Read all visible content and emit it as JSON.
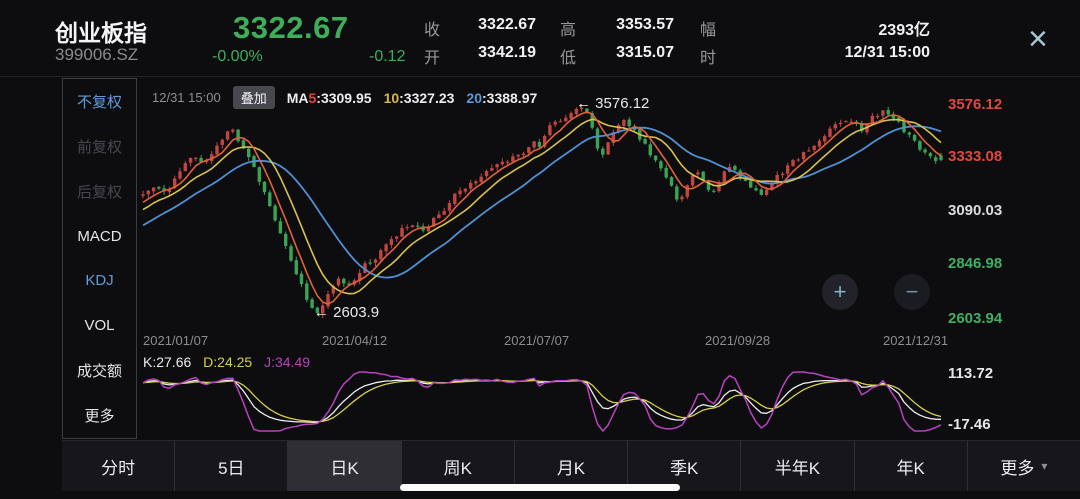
{
  "header": {
    "name": "创业板指",
    "code": "399006.SZ",
    "price": "3322.67",
    "change_pct": "-0.00%",
    "change_val": "-0.12",
    "stats": {
      "close_label": "收",
      "close": "3322.67",
      "open_label": "开",
      "open": "3342.19",
      "high_label": "高",
      "high": "3353.57",
      "low_label": "低",
      "low": "3315.07",
      "amp_label": "幅",
      "amp": "2393亿",
      "time_label": "时",
      "time": "12/31 15:00"
    },
    "close_icon": "×"
  },
  "sidebar": {
    "items": [
      {
        "label": "不复权",
        "state": "selected"
      },
      {
        "label": "前复权",
        "state": "disabled"
      },
      {
        "label": "后复权",
        "state": "disabled"
      },
      {
        "label": "MACD",
        "state": "normal"
      },
      {
        "label": "KDJ",
        "state": "selected"
      },
      {
        "label": "VOL",
        "state": "normal"
      },
      {
        "label": "成交额",
        "state": "normal"
      },
      {
        "label": "更多",
        "state": "normal"
      }
    ]
  },
  "legend": {
    "time": "12/31 15:00",
    "overlay_button": "叠加",
    "ma_prefix": "MA",
    "ma5_period": "5",
    "ma5_value": ":3309.95",
    "ma10_period": "10",
    "ma10_value": ":3327.23",
    "ma20_period": "20",
    "ma20_value": ":3388.97"
  },
  "kdj_legend": {
    "k": "K:27.66",
    "d": "D:24.25",
    "j": "J:34.49",
    "max": "113.72",
    "min": "-17.46"
  },
  "zoom_controls": {
    "plus": "+",
    "minus": "−"
  },
  "tabs": {
    "items": [
      {
        "label": "分时"
      },
      {
        "label": "5日"
      },
      {
        "label": "日K",
        "selected": true
      },
      {
        "label": "周K"
      },
      {
        "label": "月K"
      },
      {
        "label": "季K"
      },
      {
        "label": "半年K"
      },
      {
        "label": "年K"
      },
      {
        "label": "更多"
      }
    ],
    "more_caret": "▾"
  },
  "chart_data": {
    "type": "candlestick",
    "title": "创业板指 399006.SZ 日K 2021",
    "x_ticks": [
      "2021/01/07",
      "2021/04/12",
      "2021/07/07",
      "2021/09/28",
      "2021/12/31"
    ],
    "y_ticks": [
      {
        "label": "3576.12",
        "color": "#e2473f"
      },
      {
        "label": "3333.08",
        "color": "#e2473f"
      },
      {
        "label": "3090.03",
        "color": "#dcdce0"
      },
      {
        "label": "2846.98",
        "color": "#3eaf63"
      },
      {
        "label": "2603.94",
        "color": "#3eaf63"
      }
    ],
    "price_max": 3576.12,
    "price_min": 2603.94,
    "high_annotation": "← 3576.12",
    "low_annotation": "← 2603.9",
    "last": {
      "open": 3342.19,
      "close": 3322.67,
      "high": 3353.57,
      "low": 3315.07
    },
    "ma": [
      {
        "period": 5,
        "last": 3309.95,
        "color": "#e0613c"
      },
      {
        "period": 10,
        "last": 3327.23,
        "color": "#d8c14c"
      },
      {
        "period": 20,
        "last": 3388.97,
        "color": "#4e90d2"
      }
    ],
    "colors": {
      "up": "#c24540",
      "down": "#3aa455"
    },
    "candle_count": 152,
    "close_keypoints": [
      [
        0.0,
        3155
      ],
      [
        0.012,
        3205
      ],
      [
        0.03,
        3170
      ],
      [
        0.048,
        3280
      ],
      [
        0.062,
        3355
      ],
      [
        0.075,
        3310
      ],
      [
        0.088,
        3350
      ],
      [
        0.1,
        3420
      ],
      [
        0.112,
        3465
      ],
      [
        0.12,
        3410
      ],
      [
        0.132,
        3350
      ],
      [
        0.145,
        3230
      ],
      [
        0.16,
        3100
      ],
      [
        0.175,
        2960
      ],
      [
        0.19,
        2820
      ],
      [
        0.205,
        2700
      ],
      [
        0.218,
        2615
      ],
      [
        0.228,
        2690
      ],
      [
        0.243,
        2780
      ],
      [
        0.258,
        2745
      ],
      [
        0.275,
        2840
      ],
      [
        0.295,
        2890
      ],
      [
        0.315,
        2975
      ],
      [
        0.335,
        3040
      ],
      [
        0.352,
        3000
      ],
      [
        0.37,
        3070
      ],
      [
        0.39,
        3155
      ],
      [
        0.41,
        3215
      ],
      [
        0.432,
        3275
      ],
      [
        0.452,
        3320
      ],
      [
        0.47,
        3335
      ],
      [
        0.49,
        3400
      ],
      [
        0.497,
        3375
      ],
      [
        0.51,
        3470
      ],
      [
        0.53,
        3520
      ],
      [
        0.548,
        3560
      ],
      [
        0.558,
        3540
      ],
      [
        0.568,
        3400
      ],
      [
        0.575,
        3330
      ],
      [
        0.585,
        3420
      ],
      [
        0.6,
        3510
      ],
      [
        0.615,
        3460
      ],
      [
        0.632,
        3370
      ],
      [
        0.65,
        3280
      ],
      [
        0.672,
        3130
      ],
      [
        0.692,
        3270
      ],
      [
        0.712,
        3170
      ],
      [
        0.732,
        3290
      ],
      [
        0.752,
        3240
      ],
      [
        0.772,
        3160
      ],
      [
        0.79,
        3230
      ],
      [
        0.812,
        3310
      ],
      [
        0.832,
        3360
      ],
      [
        0.852,
        3430
      ],
      [
        0.872,
        3490
      ],
      [
        0.888,
        3500
      ],
      [
        0.9,
        3460
      ],
      [
        0.915,
        3520
      ],
      [
        0.93,
        3540
      ],
      [
        0.945,
        3500
      ],
      [
        0.96,
        3430
      ],
      [
        0.975,
        3370
      ],
      [
        0.99,
        3330
      ],
      [
        1.0,
        3322.67
      ]
    ],
    "kdj": {
      "k": 27.66,
      "d": 24.25,
      "j": 34.49,
      "axis_max": 113.72,
      "axis_min": -17.46,
      "period": 9,
      "colors": {
        "k": "#eceef0",
        "d": "#d6cf4e",
        "j": "#b843c0"
      }
    }
  }
}
